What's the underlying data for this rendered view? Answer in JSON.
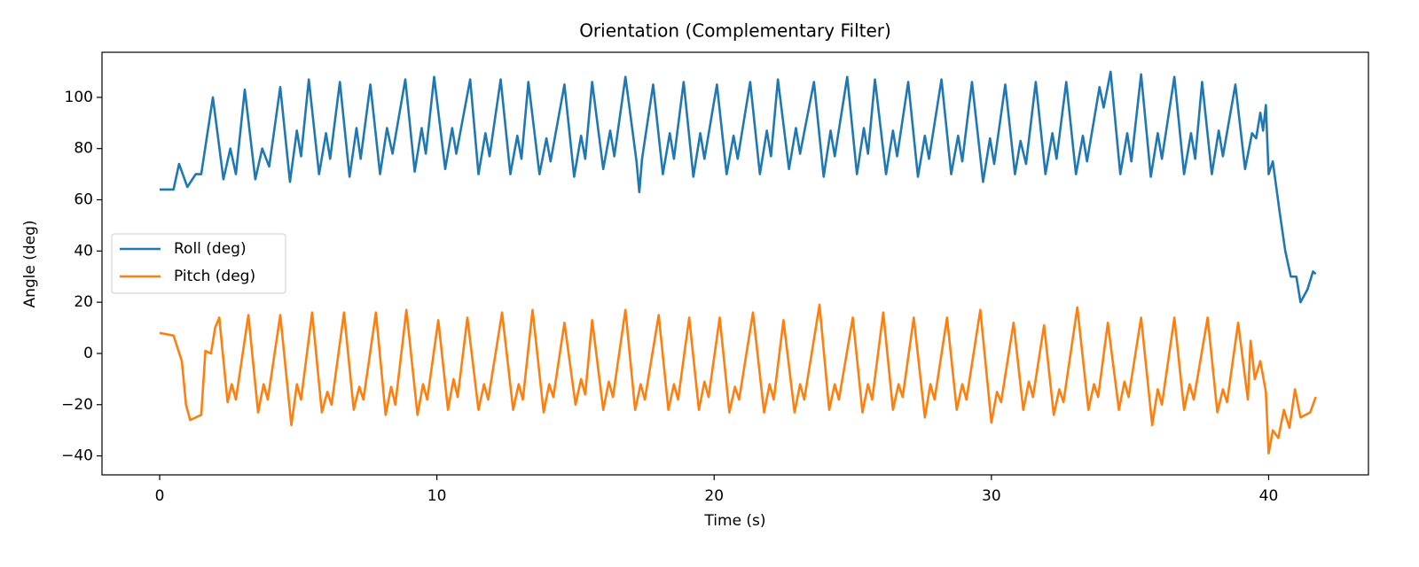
{
  "chart_data": {
    "type": "line",
    "title": "Orientation (Complementary Filter)",
    "xlabel": "Time (s)",
    "ylabel": "Angle (deg)",
    "xlim": [
      -2.08,
      43.6
    ],
    "ylim": [
      -47.4,
      117.6
    ],
    "xticks": [
      0,
      10,
      20,
      30,
      40
    ],
    "yticks": [
      {
        "value": -40,
        "label": "−40"
      },
      {
        "value": -20,
        "label": "−20"
      },
      0,
      20,
      40,
      60,
      80,
      100
    ],
    "legend": "center left",
    "series": [
      {
        "name": "Roll (deg)",
        "color": "#1f77b4",
        "x": [
          0,
          0.5,
          0.7,
          1.0,
          1.3,
          1.5,
          1.92,
          2.3,
          2.55,
          2.75,
          3.07,
          3.45,
          3.7,
          3.95,
          4.35,
          4.7,
          4.95,
          5.1,
          5.38,
          5.75,
          6.0,
          6.15,
          6.5,
          6.85,
          7.1,
          7.25,
          7.6,
          7.95,
          8.2,
          8.4,
          8.86,
          9.2,
          9.45,
          9.6,
          9.9,
          10.3,
          10.55,
          10.7,
          11.2,
          11.5,
          11.75,
          11.9,
          12.3,
          12.65,
          12.9,
          13.05,
          13.3,
          13.7,
          13.95,
          14.1,
          14.6,
          14.95,
          15.2,
          15.35,
          15.6,
          16.0,
          16.25,
          16.4,
          16.8,
          17.2,
          17.3,
          17.4,
          17.8,
          18.15,
          18.4,
          18.55,
          18.9,
          19.25,
          19.5,
          19.65,
          20.1,
          20.45,
          20.7,
          20.85,
          21.3,
          21.65,
          21.9,
          22.05,
          22.3,
          22.7,
          22.95,
          23.1,
          23.6,
          23.95,
          24.2,
          24.35,
          24.8,
          25.15,
          25.4,
          25.55,
          25.8,
          26.2,
          26.45,
          26.6,
          27.0,
          27.35,
          27.6,
          27.75,
          28.2,
          28.55,
          28.8,
          28.95,
          29.3,
          29.7,
          29.95,
          30.1,
          30.5,
          30.85,
          31.05,
          31.25,
          31.6,
          31.95,
          32.2,
          32.35,
          32.7,
          33.05,
          33.3,
          33.45,
          33.9,
          34.05,
          34.3,
          34.65,
          34.9,
          35.05,
          35.4,
          35.75,
          36.0,
          36.15,
          36.6,
          36.95,
          37.2,
          37.35,
          37.6,
          37.95,
          38.2,
          38.35,
          38.8,
          39.15,
          39.4,
          39.55,
          39.7,
          39.8,
          39.9,
          40.0,
          40.15,
          40.4,
          40.6,
          40.8,
          41.0,
          41.15,
          41.4,
          41.6,
          41.7
        ],
        "values": [
          64,
          64,
          74,
          65,
          70,
          70,
          100,
          68,
          80,
          70,
          103,
          68,
          80,
          73,
          104,
          67,
          87,
          77,
          107,
          70,
          86,
          76,
          106,
          69,
          88,
          76,
          105,
          70,
          88,
          78,
          107,
          71,
          88,
          78,
          108,
          72,
          88,
          78,
          107,
          70,
          86,
          77,
          107,
          70,
          85,
          76,
          106,
          70,
          84,
          75,
          105,
          69,
          85,
          76,
          106,
          72,
          87,
          77,
          108,
          75,
          63,
          76,
          105,
          70,
          86,
          76,
          106,
          69,
          86,
          76,
          105,
          70,
          85,
          76,
          106,
          70,
          87,
          77,
          107,
          72,
          88,
          78,
          106,
          69,
          87,
          77,
          108,
          70,
          88,
          78,
          107,
          70,
          87,
          77,
          106,
          69,
          85,
          76,
          107,
          70,
          85,
          75,
          106,
          67,
          84,
          74,
          105,
          70,
          83,
          74,
          106,
          70,
          86,
          76,
          106,
          70,
          85,
          75,
          104,
          96,
          110,
          70,
          86,
          75,
          109,
          69,
          86,
          76,
          108,
          70,
          86,
          76,
          106,
          70,
          87,
          77,
          105,
          72,
          86,
          84,
          94,
          87,
          97,
          70,
          75,
          55,
          40,
          30,
          30,
          20,
          25,
          32,
          31
        ]
      },
      {
        "name": "Pitch (deg)",
        "color": "#ff7f0e",
        "x": [
          0,
          0.5,
          0.65,
          0.8,
          0.95,
          1.1,
          1.5,
          1.65,
          1.85,
          2.0,
          2.15,
          2.45,
          2.6,
          2.75,
          3.2,
          3.55,
          3.75,
          3.9,
          4.35,
          4.75,
          4.95,
          5.1,
          5.5,
          5.85,
          6.05,
          6.2,
          6.65,
          7.0,
          7.2,
          7.35,
          7.8,
          8.15,
          8.35,
          8.5,
          8.9,
          9.3,
          9.5,
          9.65,
          10.05,
          10.4,
          10.6,
          10.75,
          11.1,
          11.5,
          11.7,
          11.85,
          12.35,
          12.75,
          12.95,
          13.1,
          13.45,
          13.85,
          14.05,
          14.2,
          14.6,
          15.0,
          15.2,
          15.35,
          15.6,
          16.0,
          16.2,
          16.35,
          16.8,
          17.15,
          17.35,
          17.5,
          18.0,
          18.35,
          18.55,
          18.7,
          19.1,
          19.45,
          19.65,
          19.8,
          20.2,
          20.55,
          20.75,
          20.9,
          21.4,
          21.8,
          22.0,
          22.15,
          22.5,
          22.9,
          23.1,
          23.25,
          23.8,
          24.15,
          24.35,
          24.5,
          25.0,
          25.35,
          25.55,
          25.7,
          26.1,
          26.45,
          26.65,
          26.8,
          27.2,
          27.6,
          27.8,
          27.95,
          28.4,
          28.75,
          28.95,
          29.1,
          29.6,
          30.0,
          30.2,
          30.35,
          30.8,
          31.15,
          31.35,
          31.5,
          31.9,
          32.25,
          32.45,
          32.6,
          33.1,
          33.5,
          33.7,
          33.85,
          34.2,
          34.6,
          34.8,
          34.95,
          35.4,
          35.8,
          36.0,
          36.15,
          36.6,
          36.95,
          37.15,
          37.3,
          37.8,
          38.15,
          38.35,
          38.5,
          38.9,
          39.25,
          39.35,
          39.5,
          39.7,
          39.9,
          40.0,
          40.15,
          40.35,
          40.55,
          40.75,
          40.95,
          41.15,
          41.5,
          41.7
        ],
        "values": [
          8,
          7,
          2,
          -3,
          -20,
          -26,
          -24,
          1,
          0,
          10,
          14,
          -19,
          -12,
          -18,
          15,
          -23,
          -12,
          -18,
          15,
          -28,
          -12,
          -18,
          16,
          -23,
          -15,
          -20,
          16,
          -22,
          -13,
          -18,
          16,
          -24,
          -13,
          -20,
          17,
          -24,
          -12,
          -18,
          13,
          -22,
          -10,
          -17,
          14,
          -22,
          -12,
          -18,
          16,
          -22,
          -12,
          -18,
          17,
          -23,
          -12,
          -17,
          12,
          -20,
          -10,
          -16,
          13,
          -22,
          -11,
          -17,
          17,
          -22,
          -12,
          -18,
          15,
          -22,
          -12,
          -18,
          14,
          -22,
          -11,
          -17,
          14,
          -23,
          -13,
          -18,
          16,
          -23,
          -12,
          -18,
          13,
          -23,
          -12,
          -18,
          19,
          -22,
          -12,
          -18,
          14,
          -23,
          -12,
          -18,
          16,
          -22,
          -12,
          -17,
          14,
          -25,
          -12,
          -18,
          14,
          -22,
          -12,
          -18,
          17,
          -27,
          -15,
          -19,
          12,
          -22,
          -11,
          -17,
          11,
          -24,
          -14,
          -19,
          18,
          -22,
          -12,
          -17,
          12,
          -22,
          -11,
          -17,
          14,
          -28,
          -14,
          -20,
          14,
          -22,
          -12,
          -18,
          14,
          -23,
          -14,
          -19,
          12,
          -18,
          5,
          -10,
          -3,
          -15,
          -39,
          -30,
          -33,
          -22,
          -29,
          -14,
          -25,
          -23,
          -17
        ]
      }
    ]
  }
}
